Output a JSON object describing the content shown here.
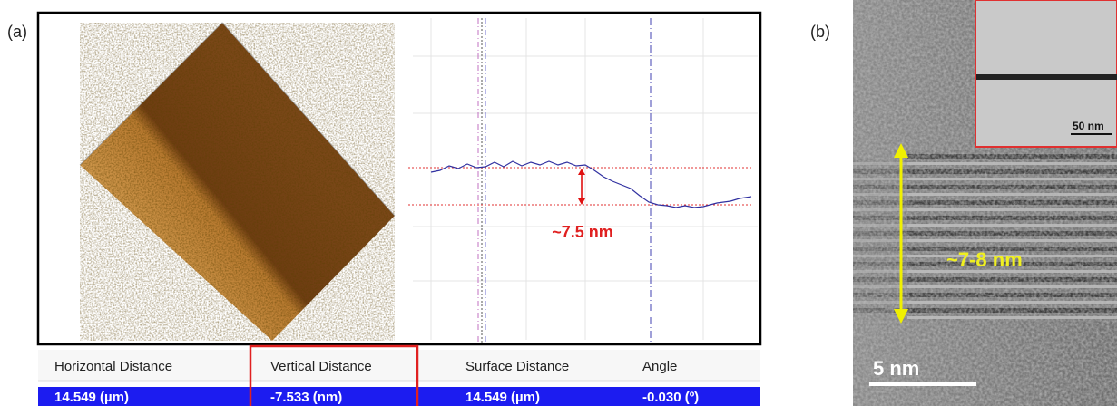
{
  "figure": {
    "panel_a": {
      "label": "(a)",
      "profile_annotation": "~7.5 nm",
      "table": {
        "headers": [
          "Horizontal Distance",
          "Vertical Distance",
          "Surface Distance",
          "Angle"
        ],
        "rows": [
          [
            "14.549 (µm)",
            "-7.533 (nm)",
            "14.549 (µm)",
            "-0.030 (º)"
          ]
        ]
      }
    },
    "panel_b": {
      "label": "(b)",
      "thickness_annotation": "~7-8 nm",
      "scale_bar": "5 nm",
      "inset_scale_bar": "50 nm"
    }
  }
}
